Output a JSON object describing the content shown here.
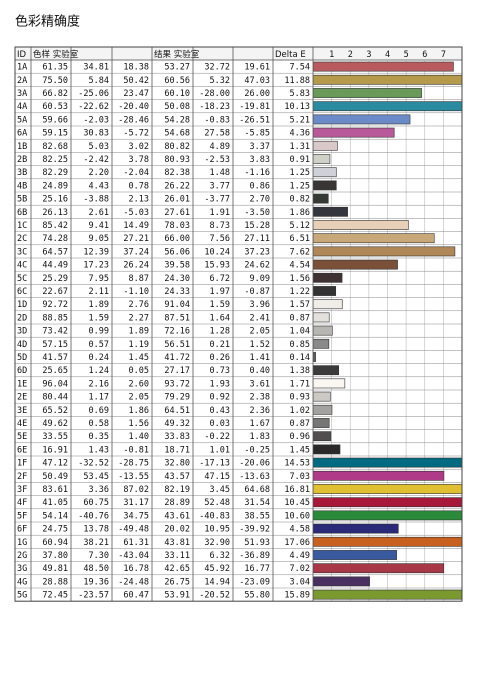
{
  "title": "色彩精确度",
  "table": {
    "columns": [
      "ID",
      "色样 实验室",
      "结果 实验室",
      "Delta E"
    ],
    "scale": {
      "xlim": [
        0,
        8
      ],
      "ticks": [
        1,
        2,
        3,
        4,
        5,
        6,
        7
      ]
    },
    "rows": [
      {
        "id": "1A",
        "sample": [
          "61.35",
          "34.81",
          "18.38"
        ],
        "result": [
          "53.27",
          "32.72",
          "19.61"
        ],
        "delta_e": "7.54",
        "color": "#b85a5e"
      },
      {
        "id": "2A",
        "sample": [
          "75.50",
          "5.84",
          "50.42"
        ],
        "result": [
          "60.56",
          "5.32",
          "47.03"
        ],
        "delta_e": "11.88",
        "color": "#b49a4a"
      },
      {
        "id": "3A",
        "sample": [
          "66.82",
          "-25.06",
          "23.47"
        ],
        "result": [
          "60.10",
          "-28.00",
          "26.00"
        ],
        "delta_e": "5.83",
        "color": "#6a9a5a"
      },
      {
        "id": "4A",
        "sample": [
          "60.53",
          "-22.62",
          "-20.40"
        ],
        "result": [
          "50.08",
          "-18.23",
          "-19.81"
        ],
        "delta_e": "10.13",
        "color": "#2a8aa0"
      },
      {
        "id": "5A",
        "sample": [
          "59.66",
          "-2.03",
          "-28.46"
        ],
        "result": [
          "54.28",
          "-0.83",
          "-26.51"
        ],
        "delta_e": "5.21",
        "color": "#6a8ac8"
      },
      {
        "id": "6A",
        "sample": [
          "59.15",
          "30.83",
          "-5.72"
        ],
        "result": [
          "54.68",
          "27.58",
          "-5.85"
        ],
        "delta_e": "4.36",
        "color": "#b85a9a"
      },
      {
        "id": "1B",
        "sample": [
          "82.68",
          "5.03",
          "3.02"
        ],
        "result": [
          "80.82",
          "4.89",
          "3.37"
        ],
        "delta_e": "1.31",
        "color": "#d8c8c8"
      },
      {
        "id": "2B",
        "sample": [
          "82.25",
          "-2.42",
          "3.78"
        ],
        "result": [
          "80.93",
          "-2.53",
          "3.83"
        ],
        "delta_e": "0.91",
        "color": "#d0d0c8"
      },
      {
        "id": "3B",
        "sample": [
          "82.29",
          "2.20",
          "-2.04"
        ],
        "result": [
          "82.38",
          "1.48",
          "-1.16"
        ],
        "delta_e": "1.25",
        "color": "#d0d0d8"
      },
      {
        "id": "4B",
        "sample": [
          "24.89",
          "4.43",
          "0.78"
        ],
        "result": [
          "26.22",
          "3.77",
          "0.86"
        ],
        "delta_e": "1.25",
        "color": "#3a3535"
      },
      {
        "id": "5B",
        "sample": [
          "25.16",
          "-3.88",
          "2.13"
        ],
        "result": [
          "26.01",
          "-3.77",
          "2.70"
        ],
        "delta_e": "0.82",
        "color": "#353a35"
      },
      {
        "id": "6B",
        "sample": [
          "26.13",
          "2.61",
          "-5.03"
        ],
        "result": [
          "27.61",
          "1.91",
          "-3.50"
        ],
        "delta_e": "1.86",
        "color": "#35353e"
      },
      {
        "id": "1C",
        "sample": [
          "85.42",
          "9.41",
          "14.49"
        ],
        "result": [
          "78.03",
          "8.73",
          "15.28"
        ],
        "delta_e": "5.12",
        "color": "#e8d0b8"
      },
      {
        "id": "2C",
        "sample": [
          "74.28",
          "9.05",
          "27.21"
        ],
        "result": [
          "66.00",
          "7.56",
          "27.11"
        ],
        "delta_e": "6.51",
        "color": "#c8a878"
      },
      {
        "id": "3C",
        "sample": [
          "64.57",
          "12.39",
          "37.24"
        ],
        "result": [
          "56.06",
          "10.24",
          "37.23"
        ],
        "delta_e": "7.62",
        "color": "#b08858"
      },
      {
        "id": "4C",
        "sample": [
          "44.49",
          "17.23",
          "26.24"
        ],
        "result": [
          "39.58",
          "15.93",
          "24.62"
        ],
        "delta_e": "4.54",
        "color": "#7a5038"
      },
      {
        "id": "5C",
        "sample": [
          "25.29",
          "7.95",
          "8.87"
        ],
        "result": [
          "24.30",
          "6.72",
          "9.09"
        ],
        "delta_e": "1.56",
        "color": "#3e3232"
      },
      {
        "id": "6C",
        "sample": [
          "22.67",
          "2.11",
          "-1.10"
        ],
        "result": [
          "24.33",
          "1.97",
          "-0.87"
        ],
        "delta_e": "1.22",
        "color": "#333334"
      },
      {
        "id": "1D",
        "sample": [
          "92.72",
          "1.89",
          "2.76"
        ],
        "result": [
          "91.04",
          "1.59",
          "3.96"
        ],
        "delta_e": "1.57",
        "color": "#f0ece8"
      },
      {
        "id": "2D",
        "sample": [
          "88.85",
          "1.59",
          "2.27"
        ],
        "result": [
          "87.51",
          "1.64",
          "2.41"
        ],
        "delta_e": "0.87",
        "color": "#e4e0dc"
      },
      {
        "id": "3D",
        "sample": [
          "73.42",
          "0.99",
          "1.89"
        ],
        "result": [
          "72.16",
          "1.28",
          "2.05"
        ],
        "delta_e": "1.04",
        "color": "#b8b6b2"
      },
      {
        "id": "4D",
        "sample": [
          "57.15",
          "0.57",
          "1.19"
        ],
        "result": [
          "56.51",
          "0.21",
          "1.52"
        ],
        "delta_e": "0.85",
        "color": "#8c8a88"
      },
      {
        "id": "5D",
        "sample": [
          "41.57",
          "0.24",
          "1.45"
        ],
        "result": [
          "41.72",
          "0.26",
          "1.41"
        ],
        "delta_e": "0.14",
        "color": "#626060"
      },
      {
        "id": "6D",
        "sample": [
          "25.65",
          "1.24",
          "0.05"
        ],
        "result": [
          "27.17",
          "0.73",
          "0.40"
        ],
        "delta_e": "1.38",
        "color": "#3c3b3b"
      },
      {
        "id": "1E",
        "sample": [
          "96.04",
          "2.16",
          "2.60"
        ],
        "result": [
          "93.72",
          "1.93",
          "3.61"
        ],
        "delta_e": "1.71",
        "color": "#faf6f2"
      },
      {
        "id": "2E",
        "sample": [
          "80.44",
          "1.17",
          "2.05"
        ],
        "result": [
          "79.29",
          "0.92",
          "2.38"
        ],
        "delta_e": "0.93",
        "color": "#ccc8c4"
      },
      {
        "id": "3E",
        "sample": [
          "65.52",
          "0.69",
          "1.86"
        ],
        "result": [
          "64.51",
          "0.43",
          "2.36"
        ],
        "delta_e": "1.02",
        "color": "#a4a2a0"
      },
      {
        "id": "4E",
        "sample": [
          "49.62",
          "0.58",
          "1.56"
        ],
        "result": [
          "49.32",
          "0.03",
          "1.67"
        ],
        "delta_e": "0.87",
        "color": "#787674"
      },
      {
        "id": "5E",
        "sample": [
          "33.55",
          "0.35",
          "1.40"
        ],
        "result": [
          "33.83",
          "-0.22",
          "1.83"
        ],
        "delta_e": "0.96",
        "color": "#504e4e"
      },
      {
        "id": "6E",
        "sample": [
          "16.91",
          "1.43",
          "-0.81"
        ],
        "result": [
          "18.71",
          "1.01",
          "-0.25"
        ],
        "delta_e": "1.45",
        "color": "#2a2828"
      },
      {
        "id": "1F",
        "sample": [
          "47.12",
          "-32.52",
          "-28.75"
        ],
        "result": [
          "32.80",
          "-17.13",
          "-20.06"
        ],
        "delta_e": "14.53",
        "color": "#006a80"
      },
      {
        "id": "2F",
        "sample": [
          "50.49",
          "53.45",
          "-13.55"
        ],
        "result": [
          "43.57",
          "47.15",
          "-13.63"
        ],
        "delta_e": "7.03",
        "color": "#b03a88"
      },
      {
        "id": "3F",
        "sample": [
          "83.61",
          "3.36",
          "87.02"
        ],
        "result": [
          "82.19",
          "3.45",
          "64.68"
        ],
        "delta_e": "16.81",
        "color": "#e0c030"
      },
      {
        "id": "4F",
        "sample": [
          "41.05",
          "60.75",
          "31.17"
        ],
        "result": [
          "28.89",
          "52.48",
          "31.54"
        ],
        "delta_e": "10.45",
        "color": "#a81838"
      },
      {
        "id": "5F",
        "sample": [
          "54.14",
          "-40.76",
          "34.75"
        ],
        "result": [
          "43.61",
          "-40.83",
          "38.55"
        ],
        "delta_e": "10.60",
        "color": "#2a8a3a"
      },
      {
        "id": "6F",
        "sample": [
          "24.75",
          "13.78",
          "-49.48"
        ],
        "result": [
          "20.02",
          "10.95",
          "-39.92"
        ],
        "delta_e": "4.58",
        "color": "#2a2a78"
      },
      {
        "id": "1G",
        "sample": [
          "60.94",
          "38.21",
          "61.31"
        ],
        "result": [
          "43.81",
          "32.90",
          "51.93"
        ],
        "delta_e": "17.06",
        "color": "#c86020"
      },
      {
        "id": "2G",
        "sample": [
          "37.80",
          "7.30",
          "-43.04"
        ],
        "result": [
          "33.11",
          "6.32",
          "-36.89"
        ],
        "delta_e": "4.49",
        "color": "#3a5aa0"
      },
      {
        "id": "3G",
        "sample": [
          "49.81",
          "48.50",
          "16.78"
        ],
        "result": [
          "42.65",
          "45.92",
          "16.77"
        ],
        "delta_e": "7.02",
        "color": "#a83848"
      },
      {
        "id": "4G",
        "sample": [
          "28.88",
          "19.36",
          "-24.48"
        ],
        "result": [
          "26.75",
          "14.94",
          "-23.09"
        ],
        "delta_e": "3.04",
        "color": "#4a3060"
      },
      {
        "id": "5G",
        "sample": [
          "72.45",
          "-23.57",
          "60.47"
        ],
        "result": [
          "53.91",
          "-20.52",
          "55.80"
        ],
        "delta_e": "15.89",
        "color": "#7a9a30"
      }
    ]
  }
}
